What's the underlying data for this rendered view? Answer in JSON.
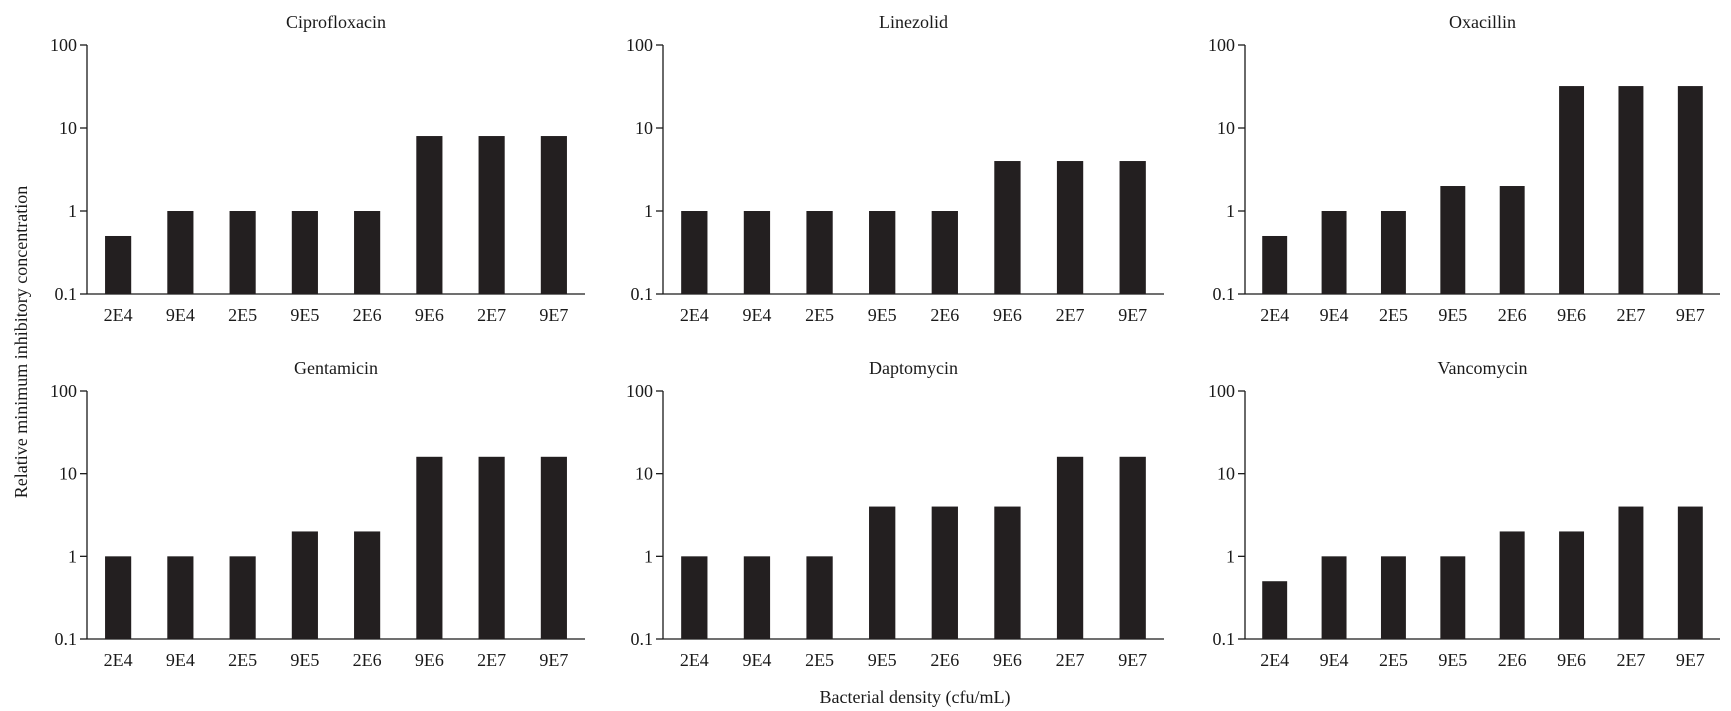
{
  "figure": {
    "ylabel": "Relative minimum inhibitory concentration",
    "xlabel": "Bacterial density (cfu/mL)"
  },
  "colors": {
    "bar": "#231f20",
    "axis": "#1a1a1a"
  },
  "chart_data": [
    {
      "type": "bar",
      "title": "Ciprofloxacin",
      "yscale": "log",
      "ylim": [
        0.1,
        100
      ],
      "yticks": [
        0.1,
        1,
        10,
        100
      ],
      "ytick_labels": [
        "0.1",
        "1",
        "10",
        "100"
      ],
      "categories": [
        "2E4",
        "9E4",
        "2E5",
        "9E5",
        "2E6",
        "9E6",
        "2E7",
        "9E7"
      ],
      "values": [
        0.5,
        1,
        1,
        1,
        1,
        8,
        8,
        8
      ]
    },
    {
      "type": "bar",
      "title": "Linezolid",
      "yscale": "log",
      "ylim": [
        0.1,
        100
      ],
      "yticks": [
        0.1,
        1,
        10,
        100
      ],
      "ytick_labels": [
        "0.1",
        "1",
        "10",
        "100"
      ],
      "categories": [
        "2E4",
        "9E4",
        "2E5",
        "9E5",
        "2E6",
        "9E6",
        "2E7",
        "9E7"
      ],
      "values": [
        1,
        1,
        1,
        1,
        1,
        4,
        4,
        4
      ]
    },
    {
      "type": "bar",
      "title": "Oxacillin",
      "yscale": "log",
      "ylim": [
        0.1,
        100
      ],
      "yticks": [
        0.1,
        1,
        10,
        100
      ],
      "ytick_labels": [
        "0.1",
        "1",
        "10",
        "100"
      ],
      "categories": [
        "2E4",
        "9E4",
        "2E5",
        "9E5",
        "2E6",
        "9E6",
        "2E7",
        "9E7"
      ],
      "values": [
        0.5,
        1,
        1,
        2,
        2,
        32,
        32,
        32
      ]
    },
    {
      "type": "bar",
      "title": "Gentamicin",
      "yscale": "log",
      "ylim": [
        0.1,
        100
      ],
      "yticks": [
        0.1,
        1,
        10,
        100
      ],
      "ytick_labels": [
        "0.1",
        "1",
        "10",
        "100"
      ],
      "categories": [
        "2E4",
        "9E4",
        "2E5",
        "9E5",
        "2E6",
        "9E6",
        "2E7",
        "9E7"
      ],
      "values": [
        1,
        1,
        1,
        2,
        2,
        16,
        16,
        16
      ]
    },
    {
      "type": "bar",
      "title": "Daptomycin",
      "yscale": "log",
      "ylim": [
        0.1,
        100
      ],
      "yticks": [
        0.1,
        1,
        10,
        100
      ],
      "ytick_labels": [
        "0.1",
        "1",
        "10",
        "100"
      ],
      "categories": [
        "2E4",
        "9E4",
        "2E5",
        "9E5",
        "2E6",
        "9E6",
        "2E7",
        "9E7"
      ],
      "values": [
        1,
        1,
        1,
        4,
        4,
        4,
        16,
        16
      ]
    },
    {
      "type": "bar",
      "title": "Vancomycin",
      "yscale": "log",
      "ylim": [
        0.1,
        100
      ],
      "yticks": [
        0.1,
        1,
        10,
        100
      ],
      "ytick_labels": [
        "0.1",
        "1",
        "10",
        "100"
      ],
      "categories": [
        "2E4",
        "9E4",
        "2E5",
        "9E5",
        "2E6",
        "9E6",
        "2E7",
        "9E7"
      ],
      "values": [
        0.5,
        1,
        1,
        1,
        2,
        2,
        4,
        4
      ]
    }
  ]
}
